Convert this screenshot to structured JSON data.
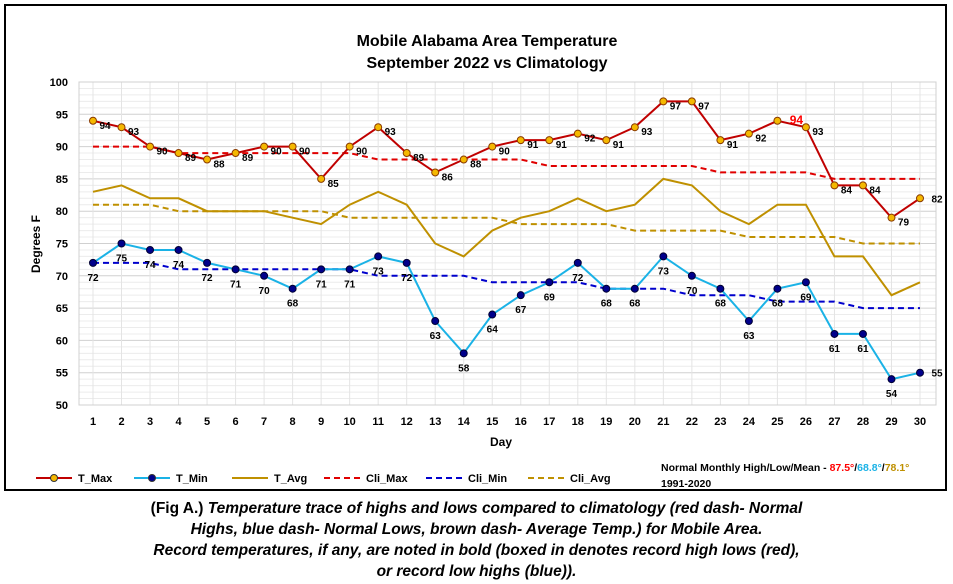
{
  "chart_data": {
    "type": "line",
    "title": "Mobile Alabama Area Temperature",
    "subtitle": "September 2022 vs Climatology",
    "xlabel": "Day",
    "ylabel": "Degrees F",
    "ylim": [
      50,
      100
    ],
    "yticks": [
      50,
      55,
      60,
      65,
      70,
      75,
      80,
      85,
      90,
      95,
      100
    ],
    "xlim": [
      1,
      30
    ],
    "grid": true,
    "legend_position": "bottom",
    "x": [
      1,
      2,
      3,
      4,
      5,
      6,
      7,
      8,
      9,
      10,
      11,
      12,
      13,
      14,
      15,
      16,
      17,
      18,
      19,
      20,
      21,
      22,
      23,
      24,
      25,
      26,
      27,
      28,
      29,
      30
    ],
    "series": [
      {
        "name": "T_Max",
        "color": "#c00000",
        "marker_fill": "#f5b800",
        "style": "solid-marker",
        "values": [
          94,
          93,
          90,
          89,
          88,
          89,
          90,
          90,
          85,
          90,
          93,
          89,
          86,
          88,
          90,
          91,
          91,
          92,
          91,
          93,
          97,
          97,
          91,
          92,
          94,
          93,
          84,
          84,
          79,
          82
        ],
        "labels": [
          "94",
          "93",
          "90",
          "89",
          "88",
          "89",
          "90",
          "90",
          "85",
          "90",
          "93",
          "89",
          "86",
          "88",
          "90",
          "91",
          "91",
          "92",
          "91",
          "93",
          "97",
          "97",
          "91",
          "92",
          "94",
          "93",
          "84",
          "84",
          "79",
          "82"
        ]
      },
      {
        "name": "T_Min",
        "color": "#1ab2e6",
        "marker_fill": "#00008b",
        "style": "solid-marker",
        "values": [
          72,
          75,
          74,
          74,
          72,
          71,
          70,
          68,
          71,
          71,
          73,
          72,
          63,
          58,
          64,
          67,
          69,
          72,
          68,
          68,
          73,
          70,
          68,
          63,
          68,
          69,
          61,
          61,
          54,
          55
        ],
        "labels": [
          "72",
          "75",
          "74",
          "74",
          "72",
          "71",
          "70",
          "68",
          "71",
          "71",
          "73",
          "72",
          "63",
          "58",
          "64",
          "67",
          "69",
          "72",
          "68",
          "68",
          "73",
          "70",
          "68",
          "63",
          "68",
          "69",
          "61",
          "61",
          "54",
          "55"
        ]
      },
      {
        "name": "T_Avg",
        "color": "#bf9000",
        "style": "solid",
        "values": [
          83,
          84,
          82,
          82,
          80,
          80,
          80,
          79,
          78,
          81,
          83,
          81,
          75,
          73,
          77,
          79,
          80,
          82,
          80,
          81,
          85,
          84,
          80,
          78,
          81,
          81,
          73,
          73,
          67,
          69
        ]
      },
      {
        "name": "Cli_Max",
        "color": "#e00000",
        "style": "dash",
        "values": [
          90,
          90,
          90,
          89,
          89,
          89,
          89,
          89,
          89,
          89,
          88,
          88,
          88,
          88,
          88,
          88,
          87,
          87,
          87,
          87,
          87,
          87,
          86,
          86,
          86,
          86,
          85,
          85,
          85,
          85
        ]
      },
      {
        "name": "Cli_Min",
        "color": "#0000cc",
        "style": "dash",
        "values": [
          72,
          72,
          72,
          71,
          71,
          71,
          71,
          71,
          71,
          71,
          70,
          70,
          70,
          70,
          69,
          69,
          69,
          69,
          68,
          68,
          68,
          67,
          67,
          67,
          66,
          66,
          66,
          65,
          65,
          65
        ]
      },
      {
        "name": "Cli_Avg",
        "color": "#bf9000",
        "style": "dash",
        "values": [
          81,
          81,
          81,
          80,
          80,
          80,
          80,
          80,
          80,
          79,
          79,
          79,
          79,
          79,
          79,
          78,
          78,
          78,
          78,
          77,
          77,
          77,
          77,
          76,
          76,
          76,
          76,
          75,
          75,
          75
        ]
      }
    ],
    "highlight_label": {
      "series": "T_Max",
      "day": 25,
      "text": "94",
      "color": "#ff0000"
    },
    "note": {
      "prefix": "Normal Monthly High/Low/Mean - ",
      "high": "87.5°",
      "sep1": "/",
      "low": "68.8°",
      "sep2": "/",
      "mean": "78.1°",
      "high_color": "#ff0000",
      "low_color": "#1ab2e6",
      "mean_color": "#bf9000",
      "period": "1991-2020"
    }
  },
  "caption": {
    "lead": "(Fig A.)",
    "line1": " Temperature trace of highs and lows compared to climatology (red dash- Normal",
    "line2": "Highs, blue dash- Normal Lows, brown dash- Average Temp.) for Mobile Area.",
    "line3": "Record temperatures, if any, are noted in bold (boxed in denotes record high lows (red),",
    "line4": "or record low highs (blue))."
  }
}
